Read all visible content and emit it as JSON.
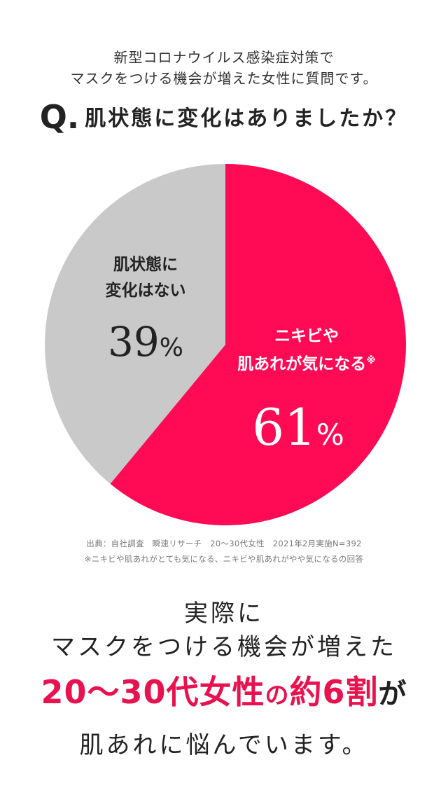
{
  "intro": {
    "line1": "新型コロナウイルス感染症対策で",
    "line2": "マスクをつける機会が増えた女性に質問です。"
  },
  "question": {
    "prefix": "Q.",
    "text": "肌状態に変化はありましたか？"
  },
  "chart_data": {
    "type": "pie",
    "slices": [
      {
        "label_line1": "ニキビや",
        "label_line2": "肌あれが気になる",
        "note_mark": "※",
        "value": 61,
        "value_text": "61",
        "unit": "%",
        "color": "#ff0a55",
        "text_color": "#ffffff"
      },
      {
        "label_line1": "肌状態に",
        "label_line2": "変化はない",
        "note_mark": "",
        "value": 39,
        "value_text": "39",
        "unit": "%",
        "color": "#c9c9c9",
        "text_color": "#222222"
      }
    ]
  },
  "source": {
    "line1": "出典：自社調査　瞬速リサーチ　20〜30代女性　2021年2月実施N=392",
    "line2": "※ニキビや肌あれがとても気になる、ニキビや肌あれがやや気になるの回答"
  },
  "closing": {
    "line1": "実際に",
    "line2": "マスクをつける機会が増えた",
    "line3_part1": "20〜30代女性",
    "line3_part2": "の",
    "line3_part3": "約6割",
    "line3_part4": "が",
    "line4": "肌あれに悩んでいます。"
  },
  "colors": {
    "accent": "#e8124f",
    "pie_red": "#ff0a55",
    "pie_gray": "#c9c9c9"
  }
}
